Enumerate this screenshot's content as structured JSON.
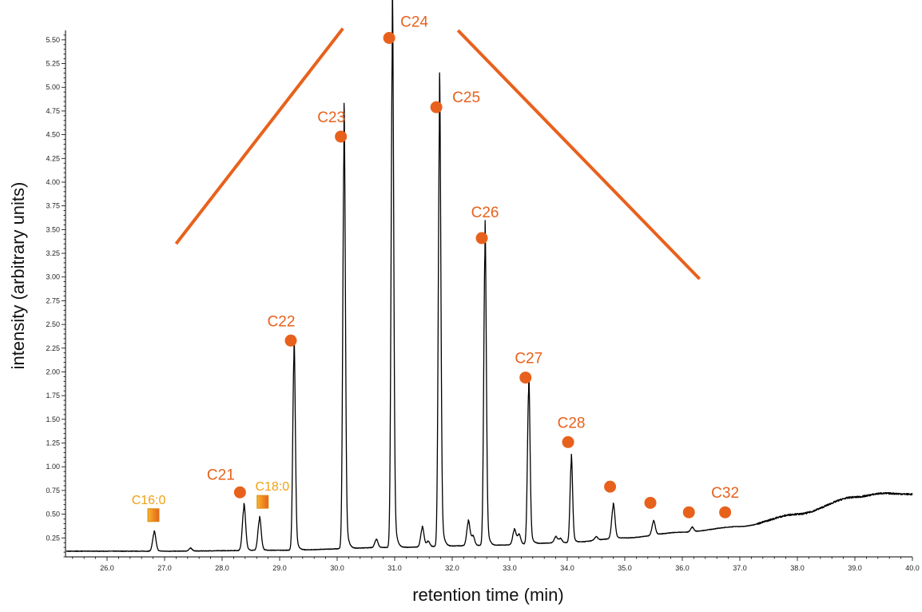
{
  "chart_data": {
    "type": "line",
    "xlabel": "retention time (min)",
    "ylabel": "intensity (arbitrary units)",
    "xlim": [
      25.0,
      40.0
    ],
    "ylim": [
      0.05,
      5.6
    ],
    "x_ticks": [
      26.0,
      27.0,
      28.0,
      29.0,
      30.0,
      31.0,
      32.0,
      33.0,
      34.0,
      35.0,
      36.0,
      37.0,
      38.0,
      39.0,
      40.0
    ],
    "y_ticks": [
      0.25,
      0.5,
      0.75,
      1.0,
      1.25,
      1.5,
      1.75,
      2.0,
      2.25,
      2.5,
      2.75,
      3.0,
      3.25,
      3.5,
      3.75,
      4.0,
      4.25,
      4.5,
      4.75,
      5.0,
      5.25,
      5.5
    ],
    "x_tick_labels": [
      "26.0",
      "27.0",
      "28.0",
      "29.0",
      "30.0",
      "31.0",
      "32.0",
      "33.0",
      "34.0",
      "35.0",
      "36.0",
      "37.0",
      "38.0",
      "39.0",
      "40.0"
    ],
    "y_tick_labels": [
      "0.25",
      "0.50",
      "0.75",
      "1.00",
      "1.25",
      "1.50",
      "1.75",
      "2.00",
      "2.25",
      "2.50",
      "2.75",
      "3.00",
      "3.25",
      "3.50",
      "3.75",
      "4.00",
      "4.25",
      "4.50",
      "4.75",
      "5.00",
      "5.25",
      "5.50"
    ],
    "trace_color": "#000000",
    "alkane_color": "#e8611c",
    "fatty_acid_color": "#f0a012",
    "alkane_peaks": [
      {
        "label": "C21",
        "x": 28.38,
        "y": 0.56,
        "marker_y": 0.73
      },
      {
        "label": "C22",
        "x": 29.25,
        "y": 2.15,
        "marker_y": 2.33
      },
      {
        "label": "C23",
        "x": 30.12,
        "y": 4.33,
        "marker_y": 4.48
      },
      {
        "label": "C24",
        "x": 30.96,
        "y": 5.41,
        "marker_y": 5.52
      },
      {
        "label": "C25",
        "x": 31.78,
        "y": 4.62,
        "marker_y": 4.79
      },
      {
        "label": "C26",
        "x": 32.57,
        "y": 3.25,
        "marker_y": 3.41
      },
      {
        "label": "C27",
        "x": 33.33,
        "y": 1.8,
        "marker_y": 1.94
      },
      {
        "label": "C28",
        "x": 34.07,
        "y": 1.04,
        "marker_y": 1.26
      },
      {
        "label": "",
        "x": 34.8,
        "y": 0.58,
        "marker_y": 0.79
      },
      {
        "label": "",
        "x": 35.5,
        "y": 0.42,
        "marker_y": 0.62
      },
      {
        "label": "",
        "x": 36.17,
        "y": 0.36,
        "marker_y": 0.52
      },
      {
        "label": "C32",
        "x": 36.8,
        "y": 0.33,
        "marker_y": 0.52
      }
    ],
    "fatty_acid_peaks": [
      {
        "label": "C16:0",
        "x": 26.82,
        "y": 0.3,
        "marker_y": 0.49
      },
      {
        "label": "C18:0",
        "x": 28.65,
        "y": 0.44,
        "marker_y": 0.63
      }
    ],
    "minor_peaks": [
      {
        "x": 27.45,
        "y": 0.14
      },
      {
        "x": 30.68,
        "y": 0.23
      },
      {
        "x": 31.48,
        "y": 0.35
      },
      {
        "x": 31.58,
        "y": 0.21
      },
      {
        "x": 32.28,
        "y": 0.41
      },
      {
        "x": 32.36,
        "y": 0.26
      },
      {
        "x": 33.08,
        "y": 0.33
      },
      {
        "x": 33.16,
        "y": 0.28
      },
      {
        "x": 33.8,
        "y": 0.26
      },
      {
        "x": 33.88,
        "y": 0.24
      },
      {
        "x": 34.5,
        "y": 0.26
      }
    ],
    "baseline": [
      [
        25.0,
        0.11
      ],
      [
        27.0,
        0.11
      ],
      [
        29.0,
        0.12
      ],
      [
        31.0,
        0.15
      ],
      [
        32.5,
        0.17
      ],
      [
        34.0,
        0.2
      ],
      [
        35.0,
        0.25
      ],
      [
        36.0,
        0.31
      ],
      [
        37.0,
        0.37
      ],
      [
        38.0,
        0.5
      ],
      [
        39.0,
        0.68
      ],
      [
        39.5,
        0.72
      ],
      [
        40.0,
        0.71
      ]
    ],
    "trend_lines": [
      {
        "from": [
          27.2,
          3.35
        ],
        "to": [
          30.1,
          5.62
        ]
      },
      {
        "from": [
          32.1,
          5.6
        ],
        "to": [
          36.3,
          2.98
        ]
      }
    ]
  }
}
